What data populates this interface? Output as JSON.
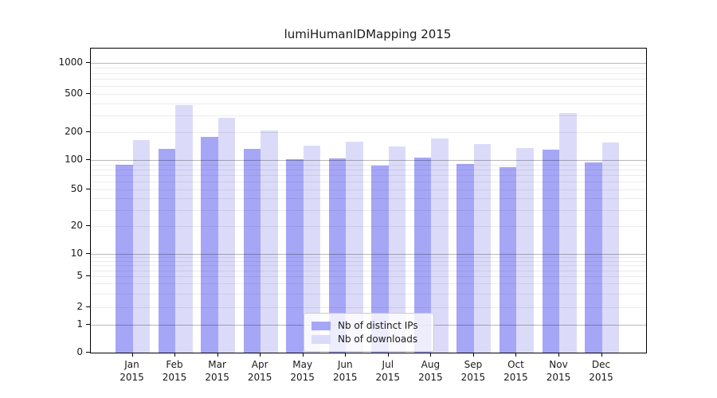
{
  "chart_data": {
    "type": "bar",
    "title": "lumiHumanIDMapping 2015",
    "categories": [
      "Jan",
      "Feb",
      "Mar",
      "Apr",
      "May",
      "Jun",
      "Jul",
      "Aug",
      "Sep",
      "Oct",
      "Nov",
      "Dec"
    ],
    "x_year": "2015",
    "series": [
      {
        "name": "Nb of distinct IPs",
        "color": "#a6a6f7",
        "values": [
          89,
          132,
          178,
          132,
          102,
          105,
          88,
          106,
          91,
          84,
          130,
          94
        ]
      },
      {
        "name": "Nb of downloads",
        "color": "#dbdbf9",
        "values": [
          164,
          380,
          280,
          207,
          143,
          158,
          140,
          170,
          148,
          135,
          315,
          155
        ]
      }
    ],
    "y_axis": {
      "ticks": [
        0,
        1,
        2,
        5,
        10,
        20,
        50,
        100,
        200,
        500,
        1000
      ],
      "scale": "symlog",
      "ylim": [
        0,
        1400
      ]
    },
    "grid": true,
    "legend_position": "lower center inside plot"
  }
}
